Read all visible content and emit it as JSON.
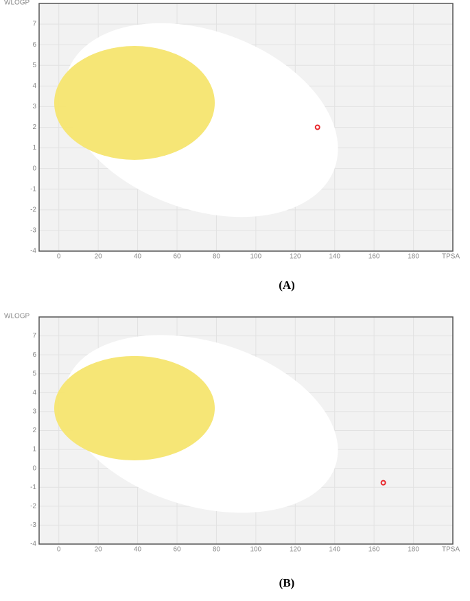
{
  "chart_data": [
    {
      "type": "scatter",
      "x_label": "TPSA",
      "y_label": "WLOGP",
      "caption": "(A)",
      "x": [
        131.3
      ],
      "values": [
        2.0
      ],
      "color": "#e8262b",
      "xlim": [
        -10,
        200
      ],
      "ylim": [
        -4,
        8
      ],
      "xticks": [
        0,
        20,
        40,
        60,
        80,
        100,
        120,
        140,
        160,
        180
      ],
      "yticks": [
        -4,
        -3,
        -2,
        -1,
        0,
        1,
        2,
        3,
        4,
        5,
        6,
        7
      ],
      "grid": true
    },
    {
      "type": "scatter",
      "x_label": "TPSA",
      "y_label": "WLOGP",
      "caption": "(B)",
      "x": [
        164.7
      ],
      "values": [
        -0.76
      ],
      "color": "#e8262b",
      "xlim": [
        -10,
        200
      ],
      "ylim": [
        -4,
        8
      ],
      "xticks": [
        0,
        20,
        40,
        60,
        80,
        100,
        120,
        140,
        160,
        180
      ],
      "yticks": [
        -4,
        -3,
        -2,
        -1,
        0,
        1,
        2,
        3,
        4,
        5,
        6,
        7
      ],
      "grid": true
    }
  ]
}
